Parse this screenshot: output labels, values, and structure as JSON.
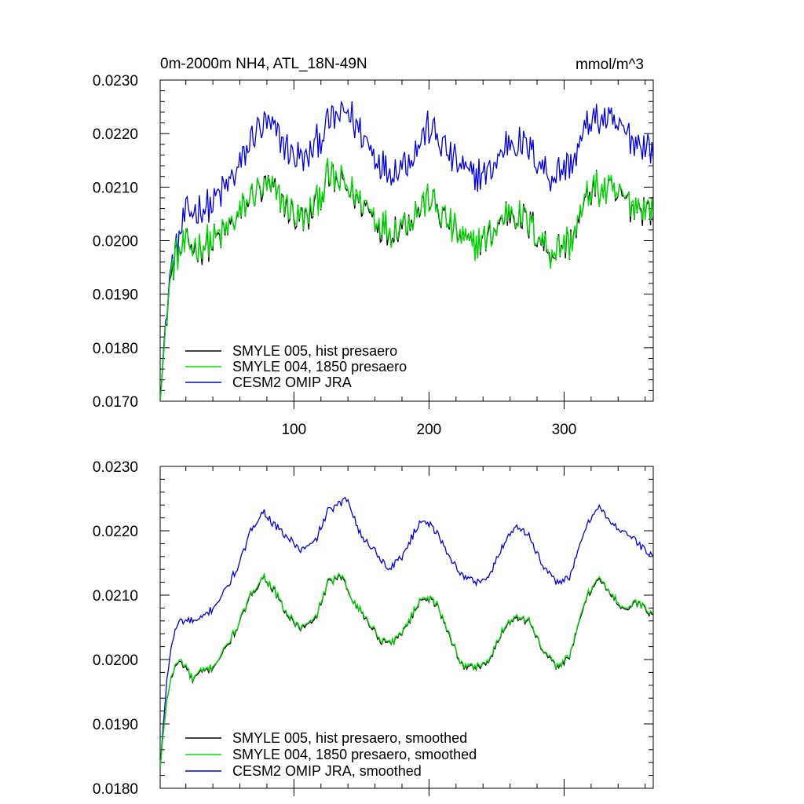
{
  "chart_data": [
    {
      "type": "line",
      "title": "0m-2000m NH4, ATL_18N-49N",
      "units": "mmol/m^3",
      "xlabel": "",
      "ylabel": "",
      "xlim": [
        1,
        366
      ],
      "ylim": [
        0.017,
        0.023
      ],
      "yticks": [
        "0.0170",
        "0.0180",
        "0.0190",
        "0.0200",
        "0.0210",
        "0.0220",
        "0.0230"
      ],
      "xticks": [
        "100",
        "200",
        "300"
      ],
      "legend_position": "bottom-left",
      "noise": 0.00032,
      "series": [
        {
          "name": "SMYLE 005, hist presaero",
          "color": "#000000",
          "offset": -2e-05,
          "anchors": [
            [
              1,
              0.017
            ],
            [
              4,
              0.018
            ],
            [
              8,
              0.0192
            ],
            [
              12,
              0.0197
            ],
            [
              20,
              0.0199
            ],
            [
              30,
              0.0199
            ],
            [
              40,
              0.02
            ],
            [
              50,
              0.0202
            ],
            [
              60,
              0.0205
            ],
            [
              70,
              0.0209
            ],
            [
              80,
              0.021
            ],
            [
              90,
              0.0208
            ],
            [
              100,
              0.0205
            ],
            [
              110,
              0.0204
            ],
            [
              125,
              0.0212
            ],
            [
              140,
              0.021
            ],
            [
              155,
              0.0206
            ],
            [
              170,
              0.0202
            ],
            [
              185,
              0.0204
            ],
            [
              200,
              0.0208
            ],
            [
              215,
              0.0203
            ],
            [
              230,
              0.0199
            ],
            [
              245,
              0.0201
            ],
            [
              260,
              0.0206
            ],
            [
              275,
              0.0203
            ],
            [
              290,
              0.0198
            ],
            [
              305,
              0.02
            ],
            [
              320,
              0.021
            ],
            [
              335,
              0.0209
            ],
            [
              350,
              0.0207
            ],
            [
              366,
              0.0206
            ]
          ]
        },
        {
          "name": "SMYLE 004, 1850 presaero",
          "color": "#00e000",
          "offset": 0,
          "anchors": [
            [
              1,
              0.017
            ],
            [
              4,
              0.018
            ],
            [
              8,
              0.0192
            ],
            [
              12,
              0.0197
            ],
            [
              20,
              0.0199
            ],
            [
              30,
              0.0199
            ],
            [
              40,
              0.02
            ],
            [
              50,
              0.0202
            ],
            [
              60,
              0.0205
            ],
            [
              70,
              0.0209
            ],
            [
              80,
              0.021
            ],
            [
              90,
              0.0208
            ],
            [
              100,
              0.0205
            ],
            [
              110,
              0.0204
            ],
            [
              125,
              0.0212
            ],
            [
              140,
              0.021
            ],
            [
              155,
              0.0206
            ],
            [
              170,
              0.0202
            ],
            [
              185,
              0.0204
            ],
            [
              200,
              0.0208
            ],
            [
              215,
              0.0203
            ],
            [
              230,
              0.0199
            ],
            [
              245,
              0.0201
            ],
            [
              260,
              0.0206
            ],
            [
              275,
              0.0203
            ],
            [
              290,
              0.0198
            ],
            [
              305,
              0.02
            ],
            [
              320,
              0.021
            ],
            [
              335,
              0.0209
            ],
            [
              350,
              0.0207
            ],
            [
              366,
              0.0206
            ]
          ]
        },
        {
          "name": "CESM2 OMIP JRA",
          "color": "#0000e0",
          "offset": 0,
          "anchors": [
            [
              1,
              0.017
            ],
            [
              4,
              0.0181
            ],
            [
              8,
              0.0193
            ],
            [
              12,
              0.0198
            ],
            [
              20,
              0.0205
            ],
            [
              30,
              0.0206
            ],
            [
              40,
              0.0207
            ],
            [
              50,
              0.021
            ],
            [
              60,
              0.0214
            ],
            [
              70,
              0.022
            ],
            [
              80,
              0.0222
            ],
            [
              90,
              0.0219
            ],
            [
              100,
              0.0216
            ],
            [
              110,
              0.0215
            ],
            [
              125,
              0.0222
            ],
            [
              140,
              0.0224
            ],
            [
              155,
              0.0218
            ],
            [
              170,
              0.0213
            ],
            [
              185,
              0.0215
            ],
            [
              200,
              0.0221
            ],
            [
              215,
              0.0216
            ],
            [
              230,
              0.0212
            ],
            [
              245,
              0.0213
            ],
            [
              260,
              0.0219
            ],
            [
              275,
              0.0217
            ],
            [
              290,
              0.0212
            ],
            [
              305,
              0.0214
            ],
            [
              320,
              0.0223
            ],
            [
              335,
              0.0222
            ],
            [
              350,
              0.0219
            ],
            [
              366,
              0.0217
            ]
          ]
        }
      ]
    },
    {
      "type": "line",
      "title": "",
      "units": "",
      "xlim": [
        1,
        366
      ],
      "ylim": [
        0.018,
        0.023
      ],
      "yticks": [
        "0.0180",
        "0.0190",
        "0.0200",
        "0.0210",
        "0.0220",
        "0.0230"
      ],
      "xticks": [],
      "legend_position": "bottom-left",
      "noise": 6e-05,
      "series": [
        {
          "name": "SMYLE 005, hist presaero, smoothed",
          "color": "#000000",
          "offset": -2e-05,
          "anchors": [
            [
              1,
              0.0183
            ],
            [
              3,
              0.0188
            ],
            [
              6,
              0.0194
            ],
            [
              10,
              0.0198
            ],
            [
              15,
              0.02
            ],
            [
              20,
              0.0199
            ],
            [
              25,
              0.0197
            ],
            [
              30,
              0.0198
            ],
            [
              40,
              0.0199
            ],
            [
              50,
              0.0202
            ],
            [
              60,
              0.0206
            ],
            [
              70,
              0.0211
            ],
            [
              78,
              0.0213
            ],
            [
              85,
              0.0211
            ],
            [
              95,
              0.0207
            ],
            [
              105,
              0.0205
            ],
            [
              115,
              0.0206
            ],
            [
              125,
              0.0212
            ],
            [
              135,
              0.0213
            ],
            [
              145,
              0.0209
            ],
            [
              155,
              0.0206
            ],
            [
              165,
              0.0203
            ],
            [
              175,
              0.0203
            ],
            [
              185,
              0.0206
            ],
            [
              195,
              0.021
            ],
            [
              205,
              0.0209
            ],
            [
              215,
              0.0204
            ],
            [
              225,
              0.0199
            ],
            [
              235,
              0.0199
            ],
            [
              245,
              0.02
            ],
            [
              255,
              0.0205
            ],
            [
              265,
              0.0207
            ],
            [
              275,
              0.0206
            ],
            [
              285,
              0.0201
            ],
            [
              295,
              0.0199
            ],
            [
              305,
              0.0201
            ],
            [
              315,
              0.0209
            ],
            [
              325,
              0.0213
            ],
            [
              335,
              0.021
            ],
            [
              345,
              0.0208
            ],
            [
              355,
              0.0209
            ],
            [
              365,
              0.0207
            ]
          ]
        },
        {
          "name": "SMYLE 004, 1850 presaero, smoothed",
          "color": "#00e000",
          "offset": 0,
          "anchors": [
            [
              1,
              0.0183
            ],
            [
              3,
              0.0188
            ],
            [
              6,
              0.0194
            ],
            [
              10,
              0.0198
            ],
            [
              15,
              0.02
            ],
            [
              20,
              0.0199
            ],
            [
              25,
              0.0197
            ],
            [
              30,
              0.0198
            ],
            [
              40,
              0.0199
            ],
            [
              50,
              0.0202
            ],
            [
              60,
              0.0206
            ],
            [
              70,
              0.0211
            ],
            [
              78,
              0.0213
            ],
            [
              85,
              0.0211
            ],
            [
              95,
              0.0207
            ],
            [
              105,
              0.0205
            ],
            [
              115,
              0.0206
            ],
            [
              125,
              0.0212
            ],
            [
              135,
              0.0213
            ],
            [
              145,
              0.0209
            ],
            [
              155,
              0.0206
            ],
            [
              165,
              0.0203
            ],
            [
              175,
              0.0203
            ],
            [
              185,
              0.0206
            ],
            [
              195,
              0.021
            ],
            [
              205,
              0.0209
            ],
            [
              215,
              0.0204
            ],
            [
              225,
              0.0199
            ],
            [
              235,
              0.0199
            ],
            [
              245,
              0.02
            ],
            [
              255,
              0.0205
            ],
            [
              265,
              0.0207
            ],
            [
              275,
              0.0206
            ],
            [
              285,
              0.0201
            ],
            [
              295,
              0.0199
            ],
            [
              305,
              0.0201
            ],
            [
              315,
              0.0209
            ],
            [
              325,
              0.0213
            ],
            [
              335,
              0.021
            ],
            [
              345,
              0.0208
            ],
            [
              355,
              0.0209
            ],
            [
              365,
              0.0207
            ]
          ]
        },
        {
          "name": "CESM2 OMIP JRA, smoothed",
          "color": "#0000e0",
          "offset": 0,
          "anchors": [
            [
              1,
              0.0183
            ],
            [
              3,
              0.0189
            ],
            [
              6,
              0.0197
            ],
            [
              10,
              0.0203
            ],
            [
              15,
              0.0206
            ],
            [
              20,
              0.0206
            ],
            [
              30,
              0.0206
            ],
            [
              40,
              0.0208
            ],
            [
              50,
              0.0211
            ],
            [
              60,
              0.0215
            ],
            [
              70,
              0.0221
            ],
            [
              78,
              0.0223
            ],
            [
              85,
              0.0221
            ],
            [
              95,
              0.0219
            ],
            [
              105,
              0.0217
            ],
            [
              115,
              0.0218
            ],
            [
              125,
              0.0223
            ],
            [
              140,
              0.0225
            ],
            [
              150,
              0.0219
            ],
            [
              160,
              0.0217
            ],
            [
              170,
              0.0214
            ],
            [
              180,
              0.0216
            ],
            [
              195,
              0.0222
            ],
            [
              205,
              0.022
            ],
            [
              215,
              0.0216
            ],
            [
              225,
              0.0213
            ],
            [
              235,
              0.0212
            ],
            [
              245,
              0.0213
            ],
            [
              255,
              0.0218
            ],
            [
              265,
              0.0221
            ],
            [
              275,
              0.0219
            ],
            [
              285,
              0.0214
            ],
            [
              295,
              0.0212
            ],
            [
              305,
              0.0213
            ],
            [
              315,
              0.022
            ],
            [
              325,
              0.0224
            ],
            [
              335,
              0.0221
            ],
            [
              345,
              0.022
            ],
            [
              355,
              0.0218
            ],
            [
              365,
              0.0216
            ]
          ]
        }
      ]
    }
  ]
}
